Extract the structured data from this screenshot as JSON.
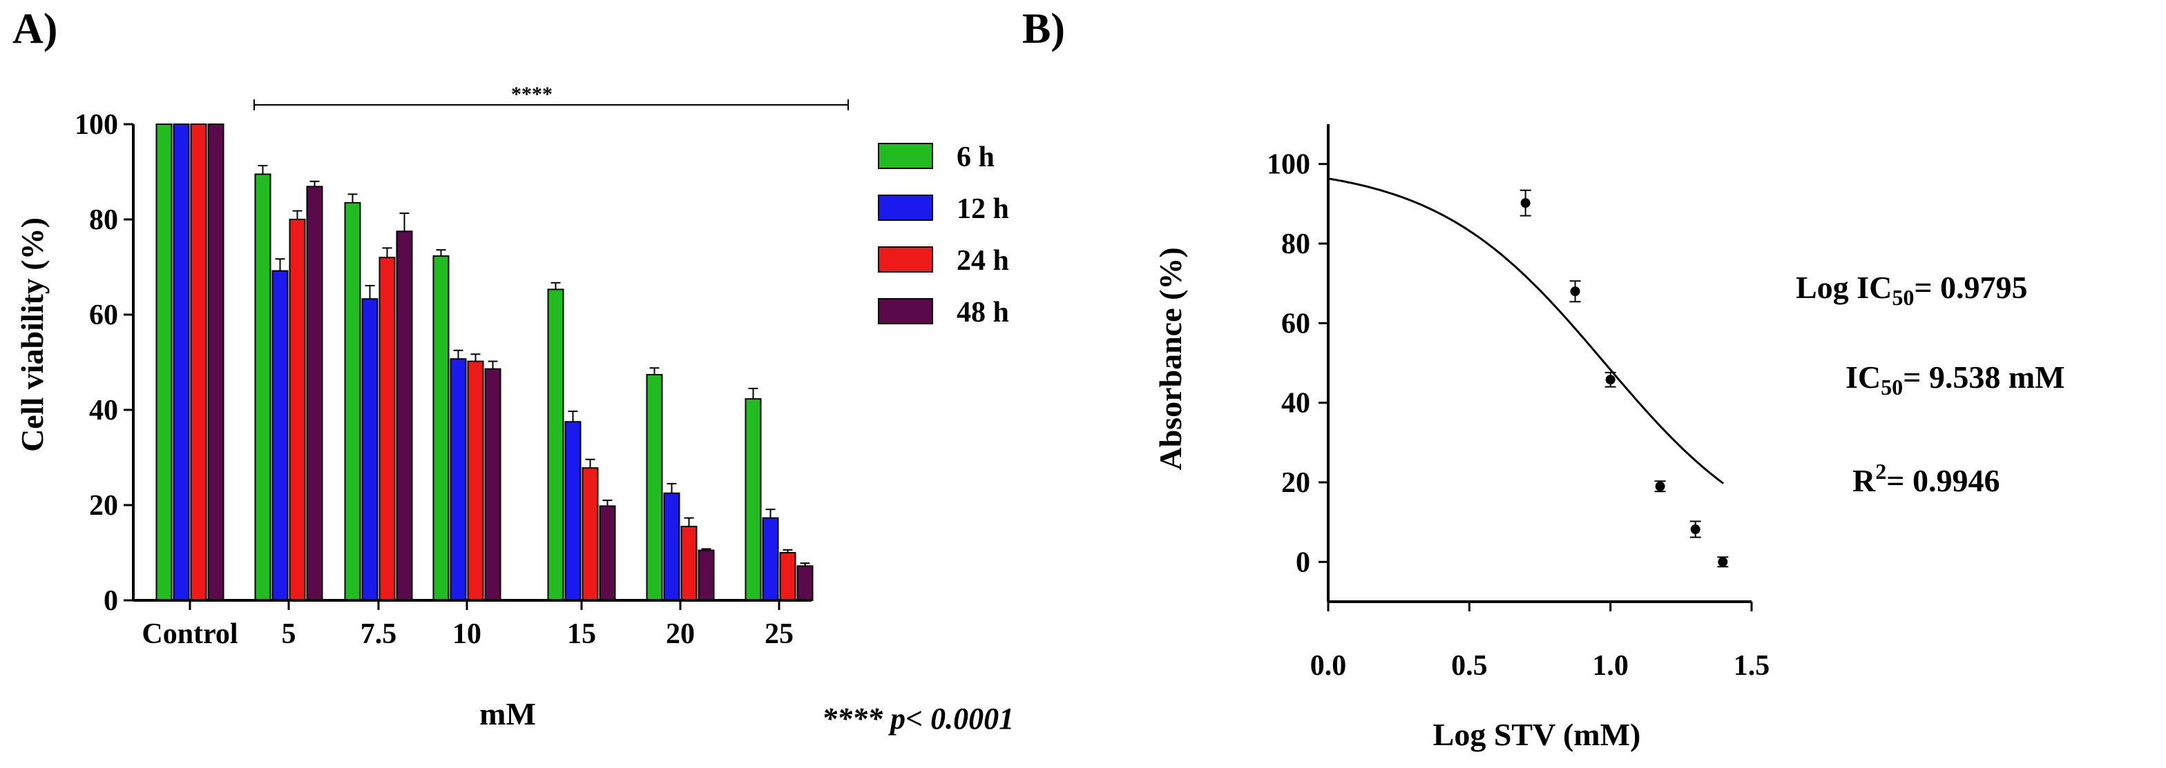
{
  "panels": {
    "a_label": "A)",
    "b_label": "B)"
  },
  "chart_data": [
    {
      "type": "bar",
      "title": "",
      "xlabel": "mM",
      "ylabel": "Cell viability (%)",
      "ylim": [
        0,
        100
      ],
      "yticks": [
        "0",
        "20",
        "40",
        "60",
        "80",
        "100"
      ],
      "categories": [
        "Control",
        "5",
        "7.5",
        "10",
        "15",
        "20",
        "25"
      ],
      "series": [
        {
          "name": "6 h",
          "color": "#22bb22",
          "values": [
            100,
            89.5,
            83.5,
            72.3,
            65.3,
            47.4,
            42.3
          ],
          "errors": [
            0,
            1.8,
            1.8,
            1.3,
            1.4,
            1.4,
            2.2
          ]
        },
        {
          "name": "12 h",
          "color": "#1a1aee",
          "values": [
            100,
            69.2,
            63.3,
            50.7,
            37.5,
            22.5,
            17.3
          ],
          "errors": [
            0,
            2.5,
            2.8,
            1.8,
            2.2,
            2.0,
            1.8
          ]
        },
        {
          "name": "24 h",
          "color": "#ee1a1a",
          "values": [
            100,
            80.0,
            72.0,
            50.2,
            27.8,
            15.5,
            10.0
          ],
          "errors": [
            0,
            1.8,
            2.0,
            1.5,
            1.8,
            1.8,
            0.6
          ]
        },
        {
          "name": "48 h",
          "color": "#5a0a4a",
          "values": [
            100,
            86.9,
            77.5,
            48.6,
            19.8,
            10.5,
            7.2
          ],
          "errors": [
            0,
            1.1,
            3.8,
            1.6,
            1.2,
            0.3,
            0.6
          ]
        }
      ],
      "significance": "****",
      "p_note": "**** p< 0.0001"
    },
    {
      "type": "scatter",
      "title": "",
      "xlabel": "Log STV (mM)",
      "ylabel": "Absorbance (%)",
      "xlim": [
        0.0,
        1.5
      ],
      "ylim": [
        -10,
        110
      ],
      "xticks": [
        "0.0",
        "0.5",
        "1.0",
        "1.5"
      ],
      "yticks": [
        "0",
        "20",
        "40",
        "60",
        "80",
        "100"
      ],
      "points": [
        {
          "x": 0.699,
          "y": 90.2,
          "err": 3.2
        },
        {
          "x": 0.875,
          "y": 68.0,
          "err": 2.6
        },
        {
          "x": 1.0,
          "y": 45.8,
          "err": 1.8
        },
        {
          "x": 1.176,
          "y": 19.0,
          "err": 1.3
        },
        {
          "x": 1.301,
          "y": 8.2,
          "err": 2.0
        },
        {
          "x": 1.398,
          "y": 0.0,
          "err": 1.2
        }
      ],
      "fit": {
        "top": 100,
        "bottom": 0,
        "log_ic50": 0.9795,
        "hill_slope": -1.45,
        "x_start": 0.0,
        "x_end": 1.4
      },
      "annotations": {
        "log_ic50": {
          "prefix": "Log IC",
          "sub": "50",
          "suffix": "= 0.9795"
        },
        "ic50": {
          "prefix": "IC",
          "sub": "50",
          "suffix": "= 9.538 mM"
        },
        "r2": {
          "prefix": "R",
          "sup": "2",
          "suffix": "= 0.9946"
        }
      }
    }
  ]
}
